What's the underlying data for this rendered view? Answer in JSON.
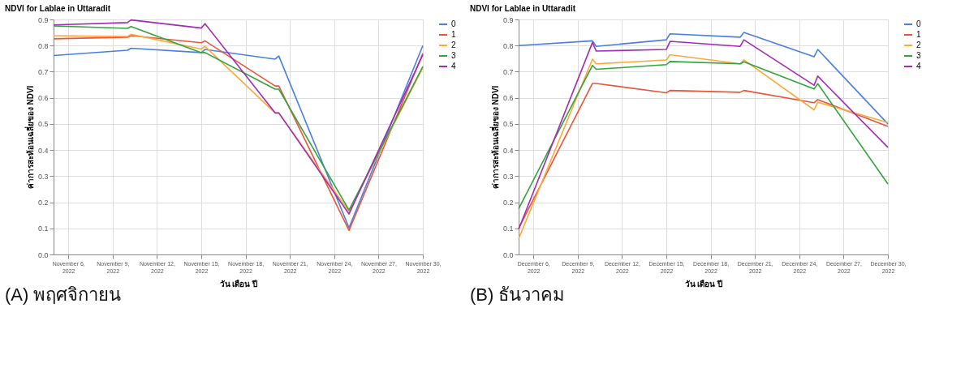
{
  "chart_data": [
    {
      "type": "line",
      "title": "NDVI for Lablae in Uttaradit",
      "xlabel": "วัน เดือน ปี",
      "ylabel": "ค่าการสะท้อนเฉลี่ยของ NDVI",
      "annotations": [
        "(A) พฤศจิกายน"
      ],
      "x": [
        "2022-11-05",
        "2022-11-10",
        "2022-11-10T06:00",
        "2022-11-15",
        "2022-11-15T06:00",
        "2022-11-20",
        "2022-11-20T06:00",
        "2022-11-25",
        "2022-11-30"
      ],
      "series": [
        {
          "name": "0",
          "color": "#4a7fe0",
          "values": [
            0.762,
            0.782,
            0.79,
            0.773,
            0.785,
            0.748,
            0.76,
            0.102,
            0.8
          ]
        },
        {
          "name": "1",
          "color": "#e8553a",
          "values": [
            0.826,
            0.832,
            0.838,
            0.811,
            0.818,
            0.645,
            0.645,
            0.092,
            0.77
          ]
        },
        {
          "name": "2",
          "color": "#fba93a",
          "values": [
            0.838,
            0.835,
            0.843,
            0.787,
            0.797,
            0.542,
            0.542,
            0.165,
            0.715
          ]
        },
        {
          "name": "3",
          "color": "#34a33c",
          "values": [
            0.875,
            0.866,
            0.873,
            0.773,
            0.773,
            0.633,
            0.633,
            0.17,
            0.72
          ]
        },
        {
          "name": "4",
          "color": "#a02cb5",
          "values": [
            0.879,
            0.888,
            0.898,
            0.867,
            0.884,
            0.542,
            0.542,
            0.155,
            0.765
          ]
        }
      ],
      "xlim": [
        "2022-11-05",
        "2022-11-30"
      ],
      "xticks": [
        {
          "value": "2022-11-06",
          "label": "November 6, 2022"
        },
        {
          "value": "2022-11-09",
          "label": "November 9, 2022"
        },
        {
          "value": "2022-11-12",
          "label": "November 12, 2022"
        },
        {
          "value": "2022-11-15",
          "label": "November 15, 2022"
        },
        {
          "value": "2022-11-18",
          "label": "November 18, 2022"
        },
        {
          "value": "2022-11-21",
          "label": "November 21, 2022"
        },
        {
          "value": "2022-11-24",
          "label": "November 24, 2022"
        },
        {
          "value": "2022-11-27",
          "label": "November 27, 2022"
        },
        {
          "value": "2022-11-30",
          "label": "November 30, 2022"
        }
      ],
      "ylim": [
        0,
        0.9
      ],
      "yticks": [
        {
          "value": 0,
          "label": "0.0"
        },
        0.1,
        0.2,
        0.3,
        0.4,
        0.5,
        0.6,
        0.7,
        0.8,
        0.9
      ],
      "grid": true,
      "legend": "right",
      "marker": "none",
      "line_style": "solid"
    },
    {
      "type": "line",
      "title": "NDVI for Lablae in Uttaradit",
      "xlabel": "วัน เดือน ปี",
      "ylabel": "ค่าการสะท้อนเฉลี่ยของ NDVI",
      "annotations": [
        "(B) ธันวาคม"
      ],
      "x": [
        "2022-12-05",
        "2022-12-10",
        "2022-12-10T06:00",
        "2022-12-15",
        "2022-12-15T06:00",
        "2022-12-20",
        "2022-12-20T06:00",
        "2022-12-25",
        "2022-12-25T06:00",
        "2022-12-30"
      ],
      "series": [
        {
          "name": "0",
          "color": "#4a7fe0",
          "values": [
            0.8,
            0.818,
            0.797,
            0.822,
            0.845,
            0.832,
            0.85,
            0.757,
            0.785,
            0.5
          ]
        },
        {
          "name": "1",
          "color": "#e8553a",
          "values": [
            0.1,
            0.655,
            0.655,
            0.619,
            0.628,
            0.621,
            0.628,
            0.581,
            0.593,
            0.49
          ]
        },
        {
          "name": "2",
          "color": "#fba93a",
          "values": [
            0.06,
            0.748,
            0.73,
            0.745,
            0.765,
            0.73,
            0.745,
            0.554,
            0.583,
            0.505
          ]
        },
        {
          "name": "3",
          "color": "#34a33c",
          "values": [
            0.175,
            0.724,
            0.709,
            0.727,
            0.739,
            0.73,
            0.738,
            0.634,
            0.654,
            0.27
          ]
        },
        {
          "name": "4",
          "color": "#a02cb5",
          "values": [
            0.096,
            0.812,
            0.779,
            0.785,
            0.816,
            0.797,
            0.822,
            0.648,
            0.683,
            0.41
          ]
        }
      ],
      "xlim": [
        "2022-12-05",
        "2022-12-30"
      ],
      "xticks": [
        {
          "value": "2022-12-06",
          "label": "December 6, 2022"
        },
        {
          "value": "2022-12-09",
          "label": "December 9, 2022"
        },
        {
          "value": "2022-12-12",
          "label": "December 12, 2022"
        },
        {
          "value": "2022-12-15",
          "label": "December 15, 2022"
        },
        {
          "value": "2022-12-18",
          "label": "December 18, 2022"
        },
        {
          "value": "2022-12-21",
          "label": "December 21, 2022"
        },
        {
          "value": "2022-12-24",
          "label": "December 24, 2022"
        },
        {
          "value": "2022-12-27",
          "label": "December 27, 2022"
        },
        {
          "value": "2022-12-30",
          "label": "December 30, 2022"
        }
      ],
      "ylim": [
        0,
        0.9
      ],
      "yticks": [
        {
          "value": 0,
          "label": "0.0"
        },
        0.1,
        0.2,
        0.3,
        0.4,
        0.5,
        0.6,
        0.7,
        0.8,
        0.9
      ],
      "grid": true,
      "legend": "right",
      "marker": "none",
      "line_style": "solid"
    }
  ]
}
